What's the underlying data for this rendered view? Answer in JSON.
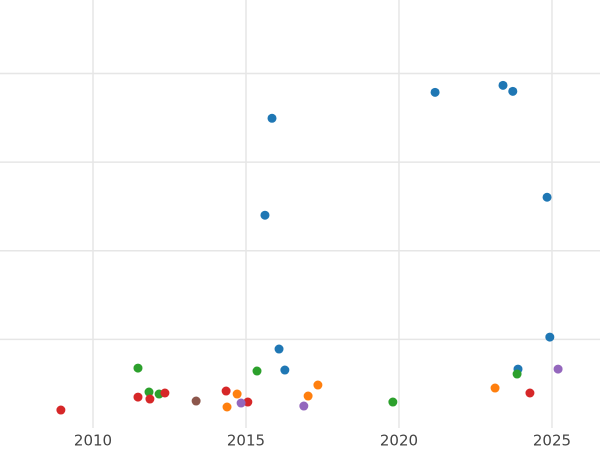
{
  "chart_data": {
    "type": "scatter",
    "xlim": [
      2006.96,
      2026.57
    ],
    "ylim": [
      0,
      4.83
    ],
    "xticks": [
      2010,
      2015,
      2020,
      2025
    ],
    "ygrid": [
      1,
      2,
      3,
      4
    ],
    "grid": true,
    "series": [
      {
        "color": "#1f77b4",
        "x": [
          2015.85,
          2015.62,
          2021.18,
          2023.4,
          2023.72,
          2024.84,
          2024.93,
          2016.08,
          2016.27,
          2023.89
        ],
        "values": [
          3.495,
          2.401,
          3.788,
          3.867,
          3.799,
          2.604,
          1.026,
          0.891,
          0.654,
          0.665
        ]
      },
      {
        "color": "#ff7f0e",
        "x": [
          2014.71,
          2014.38,
          2017.03,
          2017.35,
          2023.14
        ],
        "values": [
          0.383,
          0.237,
          0.361,
          0.485,
          0.451
        ]
      },
      {
        "color": "#2ca02c",
        "x": [
          2011.47,
          2011.83,
          2012.16,
          2015.36,
          2019.8,
          2023.86
        ],
        "values": [
          0.676,
          0.406,
          0.383,
          0.643,
          0.293,
          0.609
        ]
      },
      {
        "color": "#d62728",
        "x": [
          2008.95,
          2011.47,
          2011.86,
          2012.35,
          2014.35,
          2015.06,
          2024.28
        ],
        "values": [
          0.203,
          0.349,
          0.327,
          0.395,
          0.417,
          0.293,
          0.395
        ]
      },
      {
        "color": "#9467bd",
        "x": [
          2014.84,
          2016.89,
          2025.2
        ],
        "values": [
          0.282,
          0.248,
          0.665
        ]
      },
      {
        "color": "#8c564b",
        "x": [
          2013.37
        ],
        "values": [
          0.304
        ]
      }
    ]
  }
}
